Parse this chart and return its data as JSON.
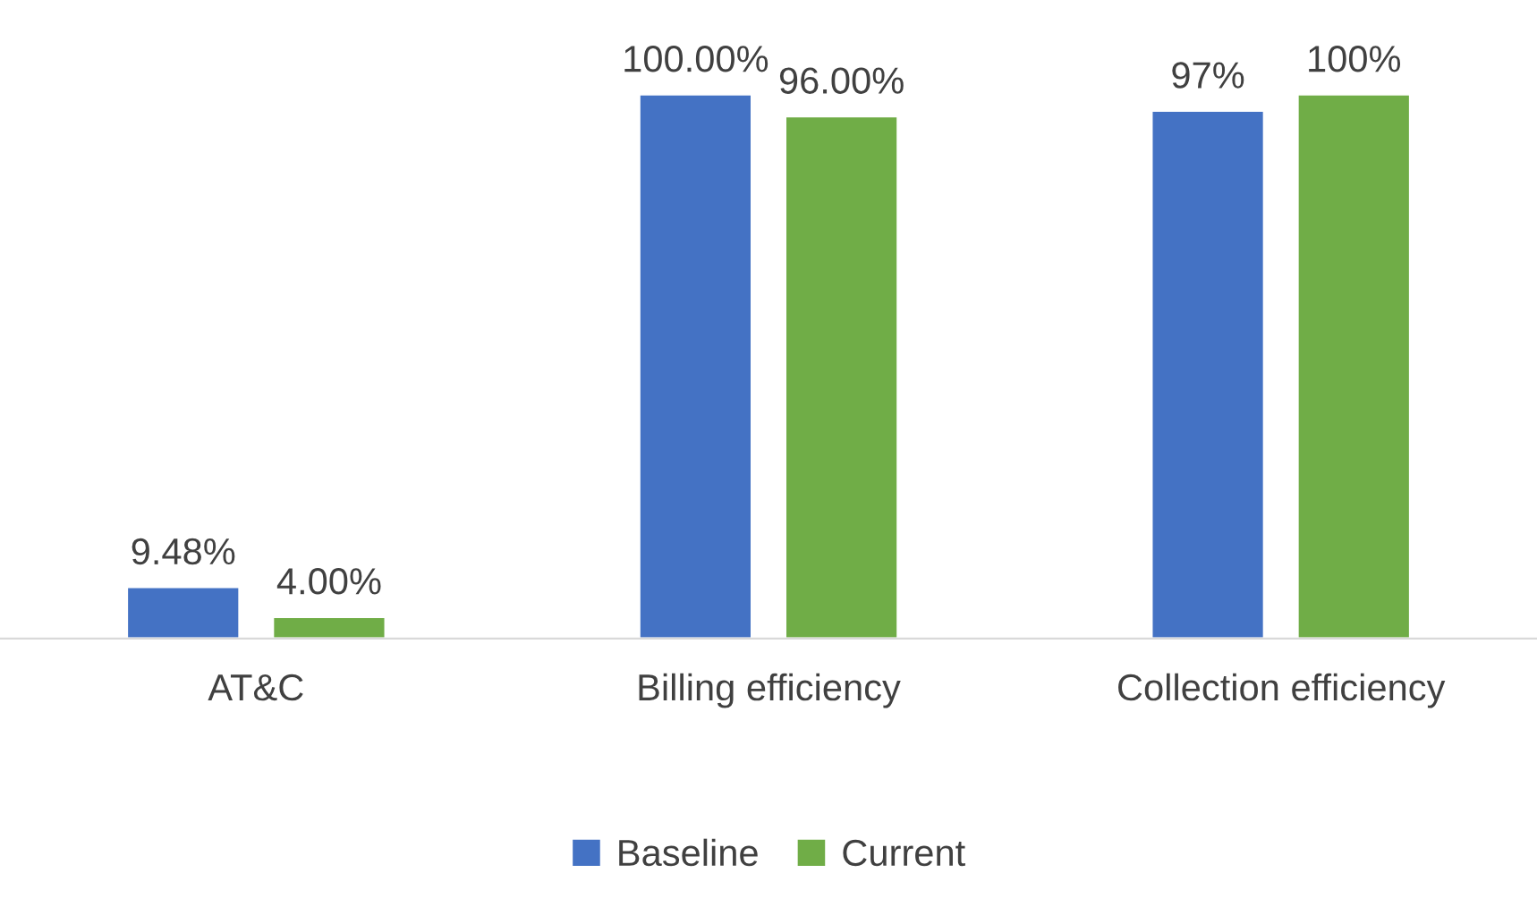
{
  "chart_data": {
    "type": "bar",
    "categories": [
      "AT&C",
      "Billing efficiency",
      "Collection efficiency"
    ],
    "series": [
      {
        "name": "Baseline",
        "color": "#4472c4",
        "values": [
          9.48,
          100,
          97
        ],
        "value_labels": [
          "9.48%",
          "100.00%",
          "97%"
        ]
      },
      {
        "name": "Current",
        "color": "#70ad47",
        "values": [
          4.0,
          96,
          100
        ],
        "value_labels": [
          "4.00%",
          "96.00%",
          "100%"
        ]
      }
    ],
    "legend": "bottom"
  }
}
